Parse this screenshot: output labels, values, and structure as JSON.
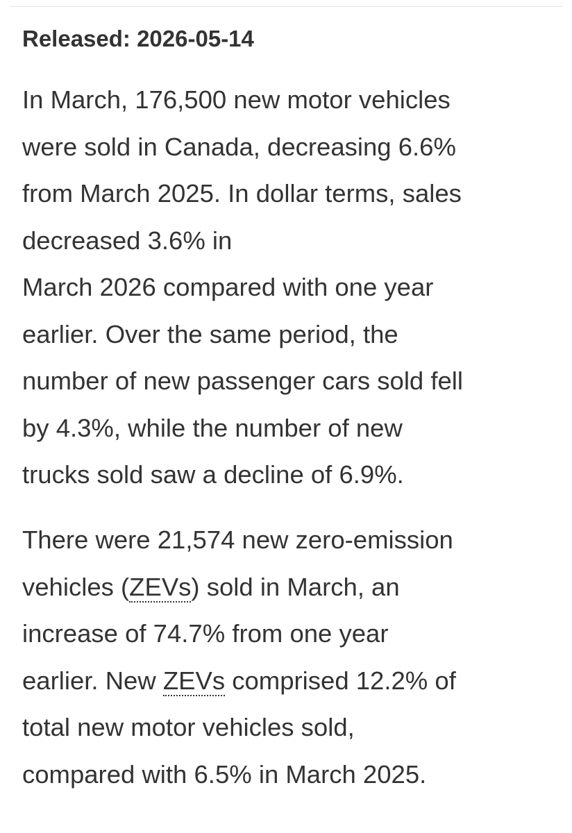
{
  "header": {
    "title": "Released: 2026-05-14"
  },
  "paragraphs": [
    {
      "lines": [
        "In March, 176,500 new motor vehicles",
        "were sold in Canada, decreasing 6.6%",
        "from March 2025. In dollar terms, sales",
        "decreased 3.6% in",
        "March 2026 compared with one year",
        "earlier. Over the same period, the",
        "number of new passenger cars sold fell",
        "by 4.3%, while the number of new",
        "trucks sold saw a decline of 6.9%."
      ]
    },
    {
      "lines": [
        "There were 21,574 new zero-emission",
        {
          "before": "vehicles (",
          "abbr": "ZEVs",
          "after": ") sold in March, an"
        },
        "increase of 74.7% from one year",
        {
          "before": "earlier. New ",
          "abbr": "ZEVs",
          "after": " comprised 12.2% of"
        },
        "total new motor vehicles sold,",
        "compared with 6.5% in March 2025."
      ]
    }
  ]
}
